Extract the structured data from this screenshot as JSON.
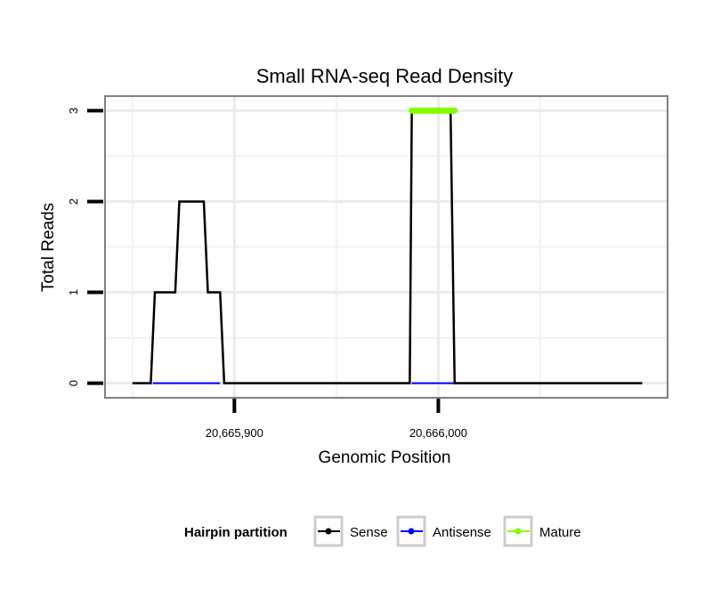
{
  "chart_data": {
    "type": "line",
    "title": "Small RNA-seq Read Density",
    "xlabel": "Genomic Position",
    "ylabel": "Total Reads",
    "xlim": [
      20665837,
      20666112
    ],
    "ylim": [
      -0.15,
      3.15
    ],
    "x_ticks": [
      {
        "value": 20665900,
        "label": "20,665,900"
      },
      {
        "value": 20666000,
        "label": "20,666,000"
      }
    ],
    "y_ticks": [
      {
        "value": 0,
        "label": "0"
      },
      {
        "value": 1,
        "label": "1"
      },
      {
        "value": 2,
        "label": "2"
      },
      {
        "value": 3,
        "label": "3"
      }
    ],
    "x_minor_gridlines": [
      20665850,
      20665950,
      20666050
    ],
    "y_minor_gridlines": [
      0.5,
      1.5,
      2.5
    ],
    "series": [
      {
        "name": "Sense",
        "color": "#000000",
        "x": [
          20665850,
          20665859,
          20665861,
          20665871,
          20665873,
          20665885,
          20665887,
          20665893,
          20665895,
          20665986,
          20665987,
          20666006,
          20666008,
          20666100
        ],
        "y": [
          0,
          0,
          1,
          1,
          2,
          2,
          1,
          1,
          0,
          0,
          3,
          3,
          0,
          0
        ]
      },
      {
        "name": "Antisense",
        "color": "#0000ff",
        "segments": [
          {
            "x": [
              20665860,
              20665893
            ],
            "y": [
              0,
              0
            ]
          },
          {
            "x": [
              20665987,
              20666008
            ],
            "y": [
              0,
              0
            ]
          }
        ]
      },
      {
        "name": "Mature",
        "color": "#7fff00",
        "segments": [
          {
            "x": [
              20665987,
              20666008
            ],
            "y": [
              3,
              3
            ]
          }
        ]
      }
    ],
    "legend": {
      "title": "Hairpin partition",
      "position": "bottom",
      "entries": [
        {
          "label": "Sense",
          "color": "#000000"
        },
        {
          "label": "Antisense",
          "color": "#0000ff"
        },
        {
          "label": "Mature",
          "color": "#7fff00"
        }
      ]
    }
  }
}
